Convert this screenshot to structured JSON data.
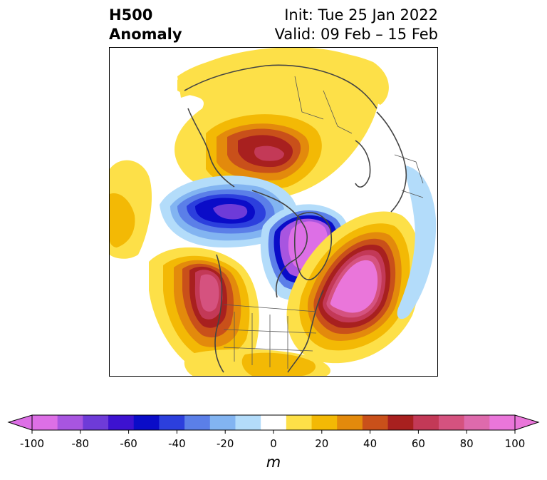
{
  "title": {
    "left_line1": "H500",
    "left_line2": "Anomaly",
    "right_line1": "Init: Tue 25 Jan 2022",
    "right_line2": "Valid: 09 Feb – 15 Feb"
  },
  "colorbar": {
    "unit": "m",
    "ticks": [
      "-100",
      "-80",
      "-60",
      "-40",
      "-20",
      "0",
      "20",
      "40",
      "60",
      "80",
      "100"
    ],
    "colors": [
      "#dd6fe6",
      "#a855e0",
      "#6e3bd8",
      "#3d12d0",
      "#0a0cc8",
      "#2c3fdd",
      "#5b7fe8",
      "#82b4f1",
      "#b3dcfa",
      "#ffffff",
      "#fde048",
      "#f3b905",
      "#e38a0c",
      "#c9501a",
      "#a8201f",
      "#c33957",
      "#d5527f",
      "#de6aac",
      "#ea76da"
    ],
    "under_color": "#dd6fe6",
    "over_color": "#ea76da"
  },
  "map": {
    "projection": "north polar stereographic",
    "regions": "North America, Arctic, Greenland, Europe"
  }
}
